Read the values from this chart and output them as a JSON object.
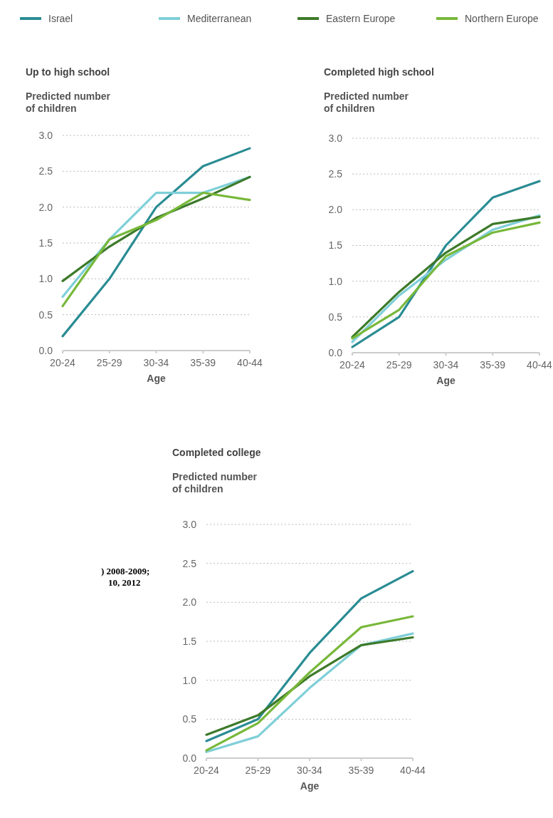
{
  "chart_data": [
    {
      "type": "line",
      "title": "Up to high school",
      "xlabel": "Age",
      "ylabel": "Predicted number of children",
      "categories": [
        "20-24",
        "25-29",
        "30-34",
        "35-39",
        "40-44"
      ],
      "ylim": [
        0,
        3
      ],
      "yticks": [
        {
          "value": 0,
          "label": "0.0"
        },
        {
          "value": 0.5,
          "label": "0.5"
        },
        {
          "value": 1,
          "label": "1.0"
        },
        {
          "value": 1.5,
          "label": "1.5"
        },
        {
          "value": 2,
          "label": "2.0"
        },
        {
          "value": 2.5,
          "label": "2.5"
        },
        {
          "value": 3,
          "label": "3.0"
        }
      ],
      "grid": "y",
      "legend": "top",
      "line_style": "solid",
      "series": [
        {
          "name": "Israel",
          "color": "#2a8c93",
          "values": [
            0.2,
            1.0,
            2.0,
            2.57,
            2.82
          ]
        },
        {
          "name": "Mediterranean",
          "color": "#7fcfd8",
          "values": [
            0.75,
            1.55,
            2.2,
            2.2,
            2.42
          ]
        },
        {
          "name": "Eastern Europe",
          "color": "#3d7a2a",
          "values": [
            0.97,
            1.45,
            1.85,
            2.12,
            2.42
          ]
        },
        {
          "name": "Northern Europe",
          "color": "#78b83a",
          "values": [
            0.62,
            1.55,
            1.82,
            2.2,
            2.1
          ]
        }
      ]
    },
    {
      "type": "line",
      "title": "Completed high school",
      "xlabel": "Age",
      "ylabel": "Predicted number of children",
      "categories": [
        "20-24",
        "25-29",
        "30-34",
        "35-39",
        "40-44"
      ],
      "ylim": [
        0,
        3
      ],
      "yticks": [
        {
          "value": 0,
          "label": "0.0"
        },
        {
          "value": 0.5,
          "label": "0.5"
        },
        {
          "value": 1,
          "label": "1.0"
        },
        {
          "value": 1.5,
          "label": "1.5"
        },
        {
          "value": 2,
          "label": "2.0"
        },
        {
          "value": 2.5,
          "label": "2.5"
        },
        {
          "value": 3,
          "label": "3.0"
        }
      ],
      "grid": "y",
      "line_style": "solid",
      "series": [
        {
          "color": "#2a8c93",
          "values": [
            0.08,
            0.5,
            1.5,
            2.17,
            2.4
          ]
        },
        {
          "color": "#7fcfd8",
          "values": [
            0.15,
            0.8,
            1.3,
            1.72,
            1.92
          ]
        },
        {
          "color": "#3d7a2a",
          "values": [
            0.22,
            0.85,
            1.4,
            1.8,
            1.9
          ]
        },
        {
          "color": "#78b83a",
          "values": [
            0.2,
            0.6,
            1.35,
            1.68,
            1.82
          ]
        }
      ]
    },
    {
      "type": "line",
      "title": "Completed college",
      "xlabel": "Age",
      "ylabel": "Predicted number of children",
      "categories": [
        "20-24",
        "25-29",
        "30-34",
        "35-39",
        "40-44"
      ],
      "ylim": [
        0,
        3
      ],
      "yticks": [
        {
          "value": 0,
          "label": "0.0"
        },
        {
          "value": 0.5,
          "label": "0.5"
        },
        {
          "value": 1,
          "label": "1.0"
        },
        {
          "value": 1.5,
          "label": "1.5"
        },
        {
          "value": 2,
          "label": "2.0"
        },
        {
          "value": 2.5,
          "label": "2.5"
        },
        {
          "value": 3,
          "label": "3.0"
        }
      ],
      "grid": "y",
      "line_style": "solid",
      "annotations": [
        ") 2008-2009;",
        "10, 2012"
      ],
      "series": [
        {
          "color": "#2a8c93",
          "values": [
            0.22,
            0.5,
            1.35,
            2.05,
            2.4
          ]
        },
        {
          "color": "#7fcfd8",
          "values": [
            0.08,
            0.28,
            0.9,
            1.45,
            1.6
          ]
        },
        {
          "color": "#3d7a2a",
          "values": [
            0.3,
            0.55,
            1.05,
            1.45,
            1.55
          ]
        },
        {
          "color": "#78b83a",
          "values": [
            0.1,
            0.45,
            1.1,
            1.68,
            1.82
          ]
        }
      ]
    }
  ]
}
